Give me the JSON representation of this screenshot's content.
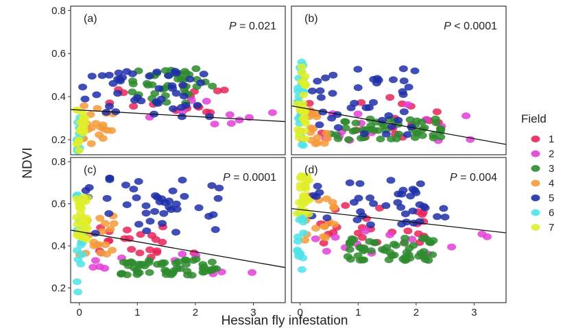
{
  "chart_data": {
    "type": "scatter",
    "xlabel": "Hessian fly infestation",
    "ylabel": "NDVI",
    "legend": {
      "title": "Field",
      "placement": "right",
      "entries": [
        {
          "name": "1",
          "color": "#e8255c"
        },
        {
          "name": "2",
          "color": "#e23fd6"
        },
        {
          "name": "3",
          "color": "#2e8b2e"
        },
        {
          "name": "4",
          "color": "#f59a3a"
        },
        {
          "name": "5",
          "color": "#1f2fa8"
        },
        {
          "name": "6",
          "color": "#4fe3e8"
        },
        {
          "name": "7",
          "color": "#dfee2a"
        }
      ]
    },
    "xlim": [
      -0.15,
      3.55
    ],
    "xticks": [
      0,
      1,
      2,
      3
    ],
    "ylim": [
      0.13,
      0.82
    ],
    "yticks": [
      0.2,
      0.4,
      0.6,
      0.8
    ],
    "grid": false,
    "panels": [
      {
        "label": "(a)",
        "p_symbol": "P",
        "p_text": "= 0.021",
        "fit": [
          [
            -0.15,
            0.34
          ],
          [
            3.55,
            0.284
          ]
        ]
      },
      {
        "label": "(b)",
        "p_symbol": "P",
        "p_text": "< 0.0001",
        "fit": [
          [
            -0.15,
            0.357
          ],
          [
            3.55,
            0.178
          ]
        ]
      },
      {
        "label": "(c)",
        "p_symbol": "P",
        "p_text": "= 0.0001",
        "fit": [
          [
            -0.15,
            0.475
          ],
          [
            3.55,
            0.297
          ]
        ]
      },
      {
        "label": "(d)",
        "p_symbol": "P",
        "p_text": "= 0.004",
        "fit": [
          [
            -0.15,
            0.577
          ],
          [
            3.55,
            0.462
          ]
        ]
      }
    ]
  }
}
